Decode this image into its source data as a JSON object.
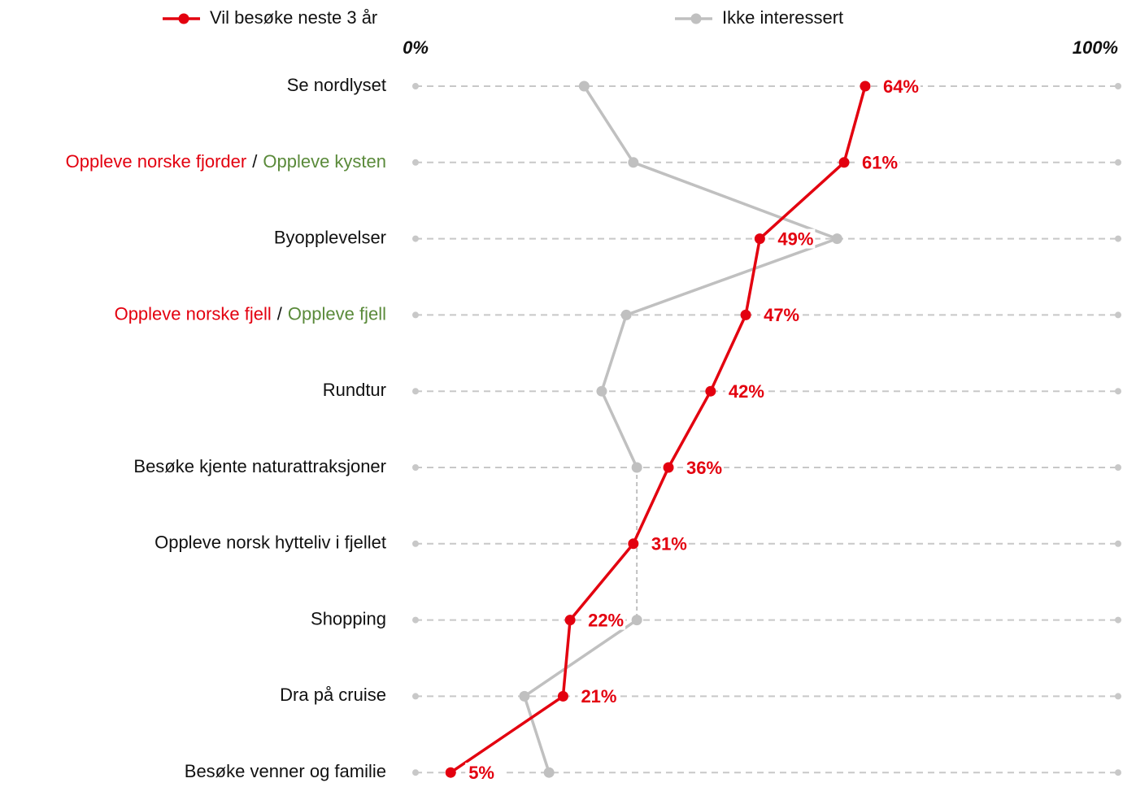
{
  "chart_data": {
    "type": "line",
    "orientation": "horizontal",
    "categories": [
      "Se nordlyset",
      [
        {
          "text": "Oppleve norske fjorder",
          "color": "#e3000f"
        },
        {
          "text": "/",
          "color": "#111111"
        },
        {
          "text": "Oppleve kysten",
          "color": "#5a8a3a"
        }
      ],
      "Byopplevelser",
      [
        {
          "text": "Oppleve norske fjell",
          "color": "#e3000f"
        },
        {
          "text": "/",
          "color": "#111111"
        },
        {
          "text": "Oppleve fjell",
          "color": "#5a8a3a"
        }
      ],
      "Rundtur",
      "Besøke kjente naturattraksjoner",
      "Oppleve norsk hytteliv i fjellet",
      "Shopping",
      "Dra på cruise",
      "Besøke venner og familie"
    ],
    "series": [
      {
        "name": "Vil besøke neste 3 år",
        "color": "#e3000f",
        "values": [
          64,
          61,
          49,
          47,
          42,
          36,
          31,
          22,
          21,
          5
        ],
        "value_labels": [
          "64%",
          "61%",
          "49%",
          "47%",
          "42%",
          "36%",
          "31%",
          "22%",
          "21%",
          "5%"
        ]
      },
      {
        "name": "Ikke interessert",
        "color": "#c0c0c0",
        "values": [
          24,
          31,
          60,
          30,
          26.5,
          31.5,
          null,
          31.5,
          15.5,
          19
        ]
      }
    ],
    "xlim": [
      0,
      100
    ],
    "xticks": [
      {
        "value": 0,
        "label": "0%"
      },
      {
        "value": 100,
        "label": "100%"
      }
    ],
    "grid": true
  }
}
